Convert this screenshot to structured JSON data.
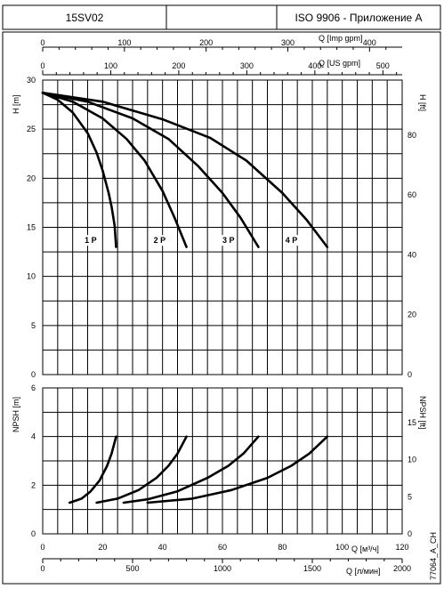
{
  "header": {
    "model": "15SV02",
    "standard": "ISO 9906 - Приложение A"
  },
  "side_code": "77064_A_CH",
  "chart_data": [
    {
      "type": "line",
      "name": "head",
      "x_axis": {
        "label": "Q [м³/ч]",
        "range": [
          0,
          120
        ],
        "ticks": [
          0,
          20,
          40,
          60,
          80,
          100,
          120
        ]
      },
      "y_axis_left": {
        "label": "H [m]",
        "range": [
          0,
          30
        ],
        "ticks": [
          0,
          5,
          10,
          15,
          20,
          25,
          30
        ]
      },
      "y_axis_right": {
        "label": "H [ft]",
        "ticks": [
          0,
          20,
          40,
          60,
          80
        ]
      },
      "top_axes": [
        {
          "label": "Q [Imp gpm]",
          "ticks": [
            0,
            100,
            200,
            300,
            400
          ]
        },
        {
          "label": "Q [US gpm]",
          "ticks": [
            0,
            100,
            200,
            300,
            400,
            500
          ]
        }
      ],
      "series": [
        {
          "name": "1 P",
          "label_at": [
            14,
            13.4
          ],
          "points": [
            [
              0,
              28.7
            ],
            [
              5,
              28.0
            ],
            [
              10,
              26.7
            ],
            [
              15,
              24.6
            ],
            [
              18,
              22.6
            ],
            [
              20,
              20.8
            ],
            [
              22,
              18.5
            ],
            [
              23,
              17.1
            ],
            [
              24,
              15.2
            ],
            [
              24.5,
              13.0
            ]
          ]
        },
        {
          "name": "2 P",
          "label_at": [
            37,
            13.4
          ],
          "points": [
            [
              0,
              28.7
            ],
            [
              10,
              27.8
            ],
            [
              20,
              26.1
            ],
            [
              28,
              24.0
            ],
            [
              34,
              21.8
            ],
            [
              40,
              18.7
            ],
            [
              44,
              16.0
            ],
            [
              48,
              13.0
            ]
          ]
        },
        {
          "name": "3 P",
          "label_at": [
            60,
            13.4
          ],
          "points": [
            [
              0,
              28.7
            ],
            [
              15,
              27.8
            ],
            [
              30,
              26.1
            ],
            [
              42,
              24.0
            ],
            [
              52,
              21.2
            ],
            [
              60,
              18.5
            ],
            [
              66,
              16.0
            ],
            [
              72,
              13.0
            ]
          ]
        },
        {
          "name": "4 P",
          "label_at": [
            81,
            13.4
          ],
          "points": [
            [
              0,
              28.7
            ],
            [
              20,
              27.8
            ],
            [
              40,
              26.0
            ],
            [
              56,
              24.1
            ],
            [
              68,
              21.8
            ],
            [
              80,
              18.5
            ],
            [
              88,
              15.8
            ],
            [
              95,
              13.0
            ]
          ]
        }
      ]
    },
    {
      "type": "line",
      "name": "npsh",
      "x_axis": {
        "label": "Q [м³/ч]",
        "range": [
          0,
          120
        ],
        "ticks": [
          0,
          20,
          40,
          60,
          80,
          100,
          120
        ]
      },
      "x_axis_2": {
        "label": "Q [л/мин]",
        "ticks": [
          0,
          500,
          1000,
          1500,
          2000
        ]
      },
      "y_axis_left": {
        "label": "NPSH [m]",
        "range": [
          0,
          6
        ],
        "ticks": [
          0,
          2,
          4,
          6
        ]
      },
      "y_axis_right": {
        "label": "NPSH [ft]",
        "ticks": [
          0,
          5,
          10,
          15
        ]
      },
      "series": [
        {
          "name": "1 P",
          "points": [
            [
              9,
              1.28
            ],
            [
              13,
              1.45
            ],
            [
              16,
              1.75
            ],
            [
              19,
              2.2
            ],
            [
              21.5,
              2.8
            ],
            [
              23,
              3.3
            ],
            [
              24.5,
              4.0
            ]
          ]
        },
        {
          "name": "2 P",
          "points": [
            [
              18,
              1.28
            ],
            [
              25,
              1.45
            ],
            [
              32,
              1.8
            ],
            [
              38,
              2.3
            ],
            [
              42,
              2.8
            ],
            [
              45,
              3.3
            ],
            [
              48,
              4.0
            ]
          ]
        },
        {
          "name": "3 P",
          "points": [
            [
              27,
              1.28
            ],
            [
              35,
              1.42
            ],
            [
              45,
              1.75
            ],
            [
              55,
              2.3
            ],
            [
              62,
              2.8
            ],
            [
              67,
              3.3
            ],
            [
              72,
              4.0
            ]
          ]
        },
        {
          "name": "4 P",
          "points": [
            [
              35,
              1.28
            ],
            [
              50,
              1.45
            ],
            [
              63,
              1.8
            ],
            [
              75,
              2.3
            ],
            [
              83,
              2.8
            ],
            [
              89,
              3.3
            ],
            [
              95,
              4.0
            ]
          ]
        }
      ]
    }
  ]
}
